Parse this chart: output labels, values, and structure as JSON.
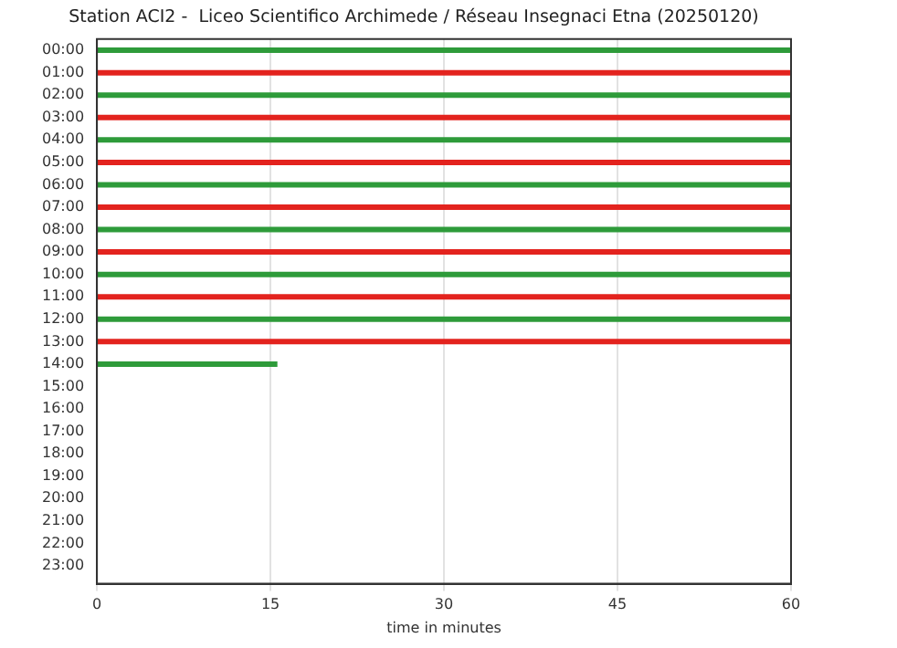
{
  "chart_data": {
    "type": "line",
    "title": "Station ACI2 -  Liceo Scientifico Archimede / Réseau Insegnaci Etna (20250120)",
    "xlabel": "time in minutes",
    "xlim": [
      0,
      60
    ],
    "xticks": [
      0,
      15,
      30,
      45,
      60
    ],
    "ylim": [
      23.8,
      -0.5
    ],
    "yticks": [
      {
        "value": 0,
        "label": "00:00"
      },
      {
        "value": 1,
        "label": "01:00"
      },
      {
        "value": 2,
        "label": "02:00"
      },
      {
        "value": 3,
        "label": "03:00"
      },
      {
        "value": 4,
        "label": "04:00"
      },
      {
        "value": 5,
        "label": "05:00"
      },
      {
        "value": 6,
        "label": "06:00"
      },
      {
        "value": 7,
        "label": "07:00"
      },
      {
        "value": 8,
        "label": "08:00"
      },
      {
        "value": 9,
        "label": "09:00"
      },
      {
        "value": 10,
        "label": "10:00"
      },
      {
        "value": 11,
        "label": "11:00"
      },
      {
        "value": 12,
        "label": "12:00"
      },
      {
        "value": 13,
        "label": "13:00"
      },
      {
        "value": 14,
        "label": "14:00"
      },
      {
        "value": 15,
        "label": "15:00"
      },
      {
        "value": 16,
        "label": "16:00"
      },
      {
        "value": 17,
        "label": "17:00"
      },
      {
        "value": 18,
        "label": "18:00"
      },
      {
        "value": 19,
        "label": "19:00"
      },
      {
        "value": 20,
        "label": "20:00"
      },
      {
        "value": 21,
        "label": "21:00"
      },
      {
        "value": 22,
        "label": "22:00"
      },
      {
        "value": 23,
        "label": "23:00"
      }
    ],
    "grid": "x",
    "marker": "none",
    "line_style": "solid",
    "series": [
      {
        "color": "#2e9b3a",
        "x": [
          0,
          60
        ],
        "values": [
          0,
          0
        ]
      },
      {
        "color": "#e3231e",
        "x": [
          0,
          60
        ],
        "values": [
          1,
          1
        ]
      },
      {
        "color": "#2e9b3a",
        "x": [
          0,
          60
        ],
        "values": [
          2,
          2
        ]
      },
      {
        "color": "#e3231e",
        "x": [
          0,
          60
        ],
        "values": [
          3,
          3
        ]
      },
      {
        "color": "#2e9b3a",
        "x": [
          0,
          60
        ],
        "values": [
          4,
          4
        ]
      },
      {
        "color": "#e3231e",
        "x": [
          0,
          60
        ],
        "values": [
          5,
          5
        ]
      },
      {
        "color": "#2e9b3a",
        "x": [
          0,
          60
        ],
        "values": [
          6,
          6
        ]
      },
      {
        "color": "#e3231e",
        "x": [
          0,
          60
        ],
        "values": [
          7,
          7
        ]
      },
      {
        "color": "#2e9b3a",
        "x": [
          0,
          60
        ],
        "values": [
          8,
          8
        ]
      },
      {
        "color": "#e3231e",
        "x": [
          0,
          60
        ],
        "values": [
          9,
          9
        ]
      },
      {
        "color": "#2e9b3a",
        "x": [
          0,
          60
        ],
        "values": [
          10,
          10
        ]
      },
      {
        "color": "#e3231e",
        "x": [
          0,
          60
        ],
        "values": [
          11,
          11
        ]
      },
      {
        "color": "#2e9b3a",
        "x": [
          0,
          60
        ],
        "values": [
          12,
          12
        ]
      },
      {
        "color": "#e3231e",
        "x": [
          0,
          60
        ],
        "values": [
          13,
          13
        ]
      },
      {
        "color": "#2e9b3a",
        "x": [
          0,
          15.6
        ],
        "values": [
          14,
          14
        ]
      }
    ]
  }
}
